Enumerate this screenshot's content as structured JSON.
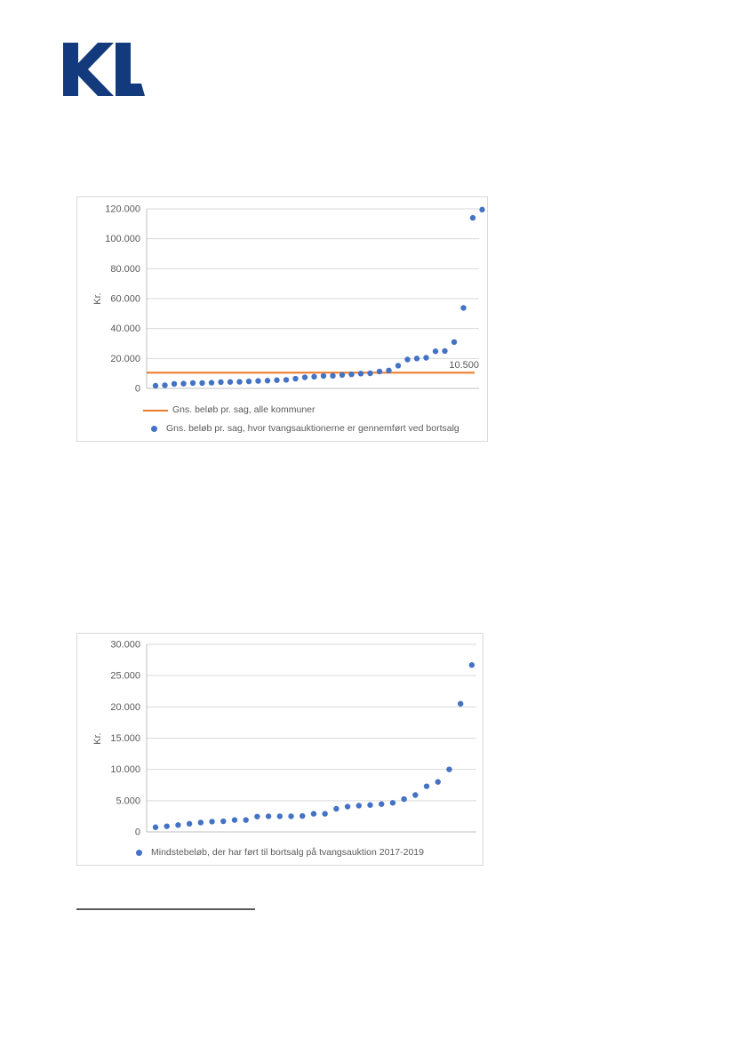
{
  "logo": {
    "text": "KL",
    "color": "#133a7c"
  },
  "chart_data": [
    {
      "type": "scatter",
      "title": "",
      "xlabel": "",
      "ylabel": "Kr.",
      "ylim": [
        0,
        120000
      ],
      "yticks": [
        "0",
        "20.000",
        "40.000",
        "60.000",
        "80.000",
        "100.000",
        "120.000"
      ],
      "grid": true,
      "legend_position": "bottom-left",
      "point_color": "#4472C4",
      "reference_line": {
        "value": 10500,
        "label": "10.500",
        "color": "#ED7D31"
      },
      "series": [
        {
          "name": "Gns. beløb pr. sag, hvor tvangsauktionerne er gennemført ved bortsalg",
          "values": [
            1800,
            2100,
            3000,
            3200,
            3600,
            3600,
            3800,
            4200,
            4300,
            4400,
            4700,
            5000,
            5200,
            5500,
            5700,
            6500,
            7400,
            7800,
            8300,
            8400,
            9000,
            9400,
            9900,
            10100,
            11300,
            12000,
            15200,
            19300,
            20000,
            20500,
            24800,
            25000,
            31000,
            53800,
            114000,
            119500
          ]
        }
      ],
      "legend": [
        {
          "marker": "line",
          "color": "#ED7D31",
          "label": "Gns. beløb pr. sag, alle kommuner"
        },
        {
          "marker": "dot",
          "color": "#4472C4",
          "label": "Gns. beløb pr. sag, hvor tvangsauktionerne er gennemført ved bortsalg"
        }
      ]
    },
    {
      "type": "scatter",
      "title": "",
      "xlabel": "",
      "ylabel": "Kr.",
      "ylim": [
        0,
        30000
      ],
      "yticks": [
        "0",
        "5.000",
        "10.000",
        "15.000",
        "20.000",
        "25.000",
        "30.000"
      ],
      "grid": true,
      "legend_position": "bottom-center",
      "point_color": "#4472C4",
      "series": [
        {
          "name": "Mindstebeløb, der har ført til bortsalg på tvangsauktion 2017-2019",
          "values": [
            750,
            900,
            1100,
            1300,
            1500,
            1650,
            1700,
            1900,
            1900,
            2450,
            2500,
            2500,
            2500,
            2550,
            2900,
            2900,
            3700,
            4050,
            4200,
            4300,
            4450,
            4650,
            5250,
            5900,
            7300,
            8000,
            10000,
            20500,
            26700
          ]
        }
      ],
      "legend": [
        {
          "marker": "dot",
          "color": "#4472C4",
          "label": "Mindstebeløb, der har ført til bortsalg på tvangsauktion 2017-2019"
        }
      ]
    }
  ],
  "colors": {
    "grid": "#d9d9d9",
    "axis": "#bfbfbf",
    "text": "#595959"
  }
}
